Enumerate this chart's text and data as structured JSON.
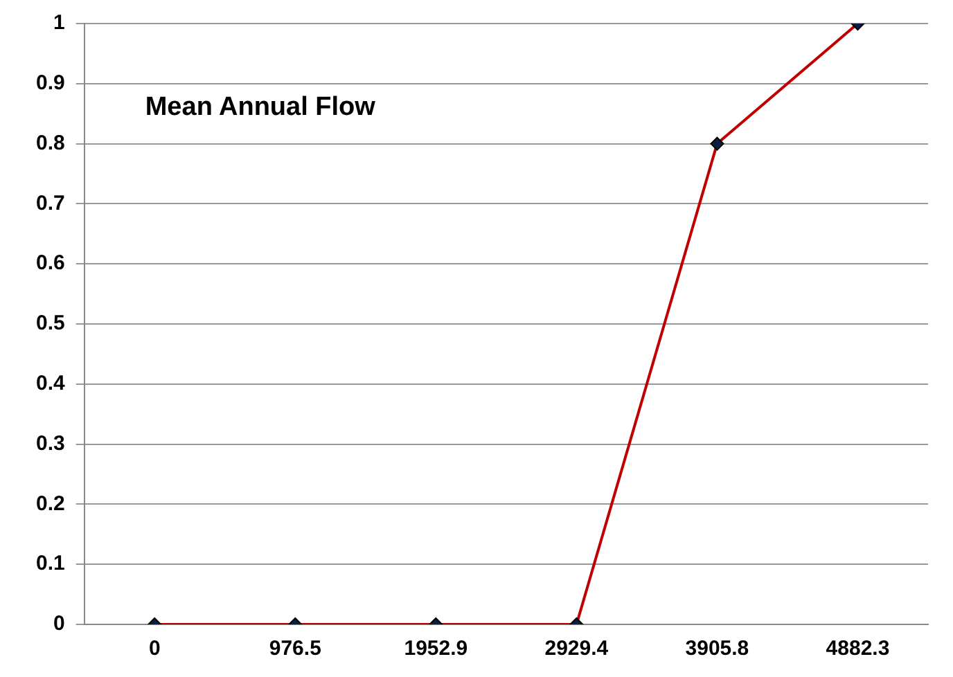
{
  "chart_data": {
    "type": "line",
    "title": "Mean Annual Flow",
    "categories": [
      "0",
      "976.5",
      "1952.9",
      "2929.4",
      "3905.8",
      "4882.3"
    ],
    "series": [
      {
        "color": "#c00000",
        "values": [
          0,
          0,
          0,
          0,
          0.8,
          1
        ]
      }
    ],
    "ylim": [
      0,
      1
    ],
    "yticks": [
      0,
      0.1,
      0.2,
      0.3,
      0.4,
      0.5,
      0.6,
      0.7,
      0.8,
      0.9,
      1
    ],
    "grid": "y",
    "legend": false,
    "marker": "diamond",
    "line_style": "solid"
  }
}
